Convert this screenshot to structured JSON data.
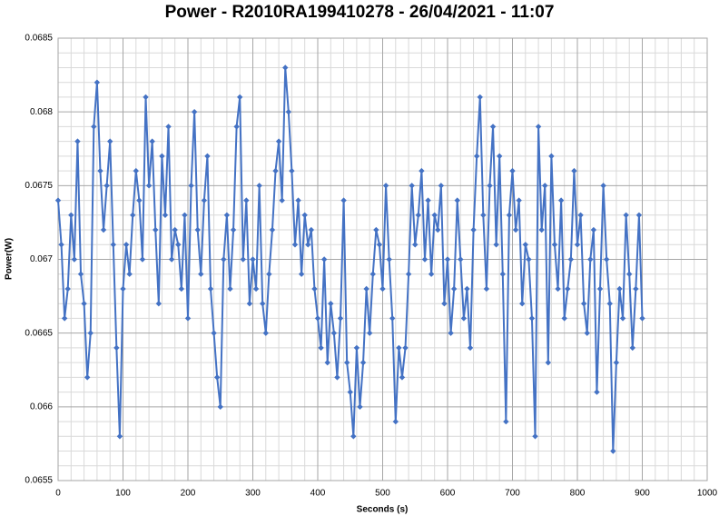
{
  "chart_data": {
    "type": "line",
    "title": "Power - R2010RA199410278 - 26/04/2021 - 11:07",
    "x_label": "Seconds (s)",
    "y_label": "Power(W)",
    "color": "#4472c4",
    "grid": true,
    "minor_grid": 5,
    "xlim": [
      0,
      1000
    ],
    "xticks": [
      0,
      100,
      200,
      300,
      400,
      500,
      600,
      700,
      800,
      900,
      1000
    ],
    "ylim": [
      0.0655,
      0.0685
    ],
    "yticks": [
      0.0655,
      0.066,
      0.0665,
      0.067,
      0.0675,
      0.068,
      0.0685
    ],
    "x": [
      0,
      5,
      10,
      15,
      20,
      25,
      30,
      35,
      40,
      45,
      50,
      55,
      60,
      65,
      70,
      75,
      80,
      85,
      90,
      95,
      100,
      105,
      110,
      115,
      120,
      125,
      130,
      135,
      140,
      145,
      150,
      155,
      160,
      165,
      170,
      175,
      180,
      185,
      190,
      195,
      200,
      205,
      210,
      215,
      220,
      225,
      230,
      235,
      240,
      245,
      250,
      255,
      260,
      265,
      270,
      275,
      280,
      285,
      290,
      295,
      300,
      305,
      310,
      315,
      320,
      325,
      330,
      335,
      340,
      345,
      350,
      355,
      360,
      365,
      370,
      375,
      380,
      385,
      390,
      395,
      400,
      405,
      410,
      415,
      420,
      425,
      430,
      435,
      440,
      445,
      450,
      455,
      460,
      465,
      470,
      475,
      480,
      485,
      490,
      495,
      500,
      505,
      510,
      515,
      520,
      525,
      530,
      535,
      540,
      545,
      550,
      555,
      560,
      565,
      570,
      575,
      580,
      585,
      590,
      595,
      600,
      605,
      610,
      615,
      620,
      625,
      630,
      635,
      640,
      645,
      650,
      655,
      660,
      665,
      670,
      675,
      680,
      685,
      690,
      695,
      700,
      705,
      710,
      715,
      720,
      725,
      730,
      735,
      740,
      745,
      750,
      755,
      760,
      765,
      770,
      775,
      780,
      785,
      790,
      795,
      800,
      805,
      810,
      815,
      820,
      825,
      830,
      835,
      840,
      845,
      850,
      855,
      860,
      865,
      870,
      875,
      880,
      885,
      890,
      895,
      900
    ],
    "values": [
      0.0674,
      0.0671,
      0.0666,
      0.0668,
      0.0673,
      0.067,
      0.0678,
      0.0669,
      0.0667,
      0.0662,
      0.0665,
      0.0679,
      0.0682,
      0.0676,
      0.0672,
      0.0675,
      0.0678,
      0.0671,
      0.0664,
      0.0658,
      0.0668,
      0.0671,
      0.0669,
      0.0673,
      0.0676,
      0.0674,
      0.067,
      0.0681,
      0.0675,
      0.0678,
      0.0672,
      0.0667,
      0.0677,
      0.0673,
      0.0679,
      0.067,
      0.0672,
      0.0671,
      0.0668,
      0.0673,
      0.0666,
      0.0675,
      0.068,
      0.0672,
      0.0669,
      0.0674,
      0.0677,
      0.0668,
      0.0665,
      0.0662,
      0.066,
      0.067,
      0.0673,
      0.0668,
      0.0672,
      0.0679,
      0.0681,
      0.067,
      0.0674,
      0.0667,
      0.067,
      0.0668,
      0.0675,
      0.0667,
      0.0665,
      0.0669,
      0.0672,
      0.0676,
      0.0678,
      0.0674,
      0.0683,
      0.068,
      0.0676,
      0.0671,
      0.0674,
      0.0669,
      0.0673,
      0.0671,
      0.0672,
      0.0668,
      0.0666,
      0.0664,
      0.067,
      0.0663,
      0.0667,
      0.0665,
      0.0662,
      0.0666,
      0.0674,
      0.0663,
      0.0661,
      0.0658,
      0.0664,
      0.066,
      0.0663,
      0.0668,
      0.0665,
      0.0669,
      0.0672,
      0.0671,
      0.0668,
      0.0675,
      0.067,
      0.0666,
      0.0659,
      0.0664,
      0.0662,
      0.0664,
      0.0669,
      0.0675,
      0.0671,
      0.0673,
      0.0676,
      0.067,
      0.0674,
      0.0669,
      0.0673,
      0.0672,
      0.0675,
      0.0667,
      0.067,
      0.0665,
      0.0668,
      0.0674,
      0.067,
      0.0666,
      0.0668,
      0.0664,
      0.0672,
      0.0677,
      0.0681,
      0.0673,
      0.0668,
      0.0675,
      0.0679,
      0.0671,
      0.0677,
      0.0669,
      0.0659,
      0.0673,
      0.0676,
      0.0672,
      0.0674,
      0.0667,
      0.0671,
      0.067,
      0.0666,
      0.0658,
      0.0679,
      0.0672,
      0.0675,
      0.0663,
      0.0677,
      0.0671,
      0.0668,
      0.0674,
      0.0666,
      0.0668,
      0.067,
      0.0676,
      0.0671,
      0.0673,
      0.0667,
      0.0665,
      0.067,
      0.0672,
      0.0661,
      0.0668,
      0.0675,
      0.067,
      0.0667,
      0.0657,
      0.0663,
      0.0668,
      0.0666,
      0.0673,
      0.0669,
      0.0664,
      0.0668,
      0.0673,
      0.0666
    ]
  }
}
